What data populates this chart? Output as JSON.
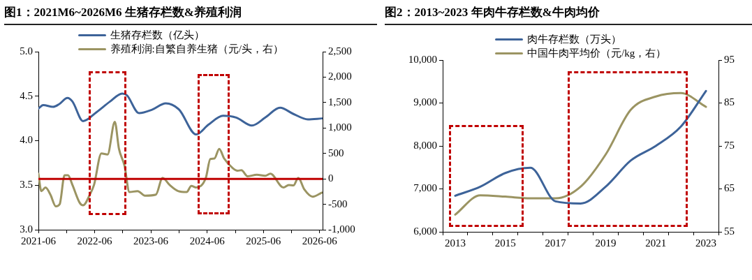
{
  "chart_data": [
    {
      "type": "line",
      "title": "图1：2021M6~2026M6 生猪存栏数&养殖利润",
      "legend": "top",
      "grid": false,
      "xlim": [
        "2021-06",
        "2026-06-20"
      ],
      "xticks": [
        {
          "value": "2021-06",
          "label": "2021-06"
        },
        {
          "value": "2021-12",
          "label": null
        },
        {
          "value": "2022-06",
          "label": "2022-06"
        },
        {
          "value": "2022-12",
          "label": null
        },
        {
          "value": "2023-06",
          "label": "2023-06"
        },
        {
          "value": "2023-12",
          "label": null
        },
        {
          "value": "2024-06",
          "label": "2024-06"
        },
        {
          "value": "2024-12",
          "label": null
        },
        {
          "value": "2025-06",
          "label": "2025-06"
        },
        {
          "value": "2025-12",
          "label": null
        },
        {
          "value": "2026-06",
          "label": "2026-06"
        }
      ],
      "ylim": [
        3,
        5
      ],
      "yticks": [
        {
          "value": 3,
          "label": "3.0"
        },
        {
          "value": 3.5,
          "label": "3.5"
        },
        {
          "value": 4,
          "label": "4.0"
        },
        {
          "value": 4.5,
          "label": "4.5"
        },
        {
          "value": 5,
          "label": "5.0"
        }
      ],
      "y2lim": [
        -1000,
        2500
      ],
      "y2ticks": [
        {
          "value": -1000,
          "label": "-1,000"
        },
        {
          "value": -500,
          "label": "-500"
        },
        0,
        500,
        {
          "value": 1000,
          "label": "1,000"
        },
        {
          "value": 1500,
          "label": "1,500"
        },
        {
          "value": 2000,
          "label": "2,000"
        },
        {
          "value": 2500,
          "label": "2,500"
        }
      ],
      "ref_lines": [
        {
          "axis": "y2",
          "value": 0,
          "color": "#c00000"
        }
      ],
      "series": [
        {
          "name": "生猪存栏数（亿头）",
          "color": "#3d6399",
          "x": [
            "2021-06-01",
            "2021-07-02",
            "2021-09-04",
            "2021-10-13",
            "2021-12-07",
            "2022-01-08",
            "2022-03-18",
            "2022-06-13",
            "2022-09-09",
            "2022-11-27",
            "2022-12-28",
            "2023-03-16",
            "2023-06-11",
            "2023-09-06",
            "2023-12-01",
            "2024-03-21",
            "2024-06-09",
            "2024-09-12",
            "2024-12-06",
            "2025-03-18",
            "2025-06-13",
            "2025-09-17",
            "2025-12-13",
            "2026-03-16",
            "2026-06-15"
          ],
          "values": [
            4.36,
            4.4,
            4.38,
            4.41,
            4.48,
            4.44,
            4.22,
            4.32,
            4.44,
            4.53,
            4.51,
            4.31,
            4.35,
            4.42,
            4.35,
            4.07,
            4.18,
            4.28,
            4.26,
            4.17,
            4.26,
            4.37,
            4.3,
            4.24,
            4.25
          ]
        },
        {
          "name": "养殖利润:自繁自养生猪（元/头，右）",
          "color": "#9b9462",
          "axis": "y2",
          "x": [
            "2021-06-01",
            "2021-06-20",
            "2021-07-17",
            "2021-08-18",
            "2021-09-22",
            "2021-10-17",
            "2021-11-18",
            "2021-12-10",
            "2022-01-08",
            "2022-02-24",
            "2022-03-18",
            "2022-05-01",
            "2022-05-28",
            "2022-07-15",
            "2022-08-24",
            "2022-10-10",
            "2022-11-06",
            "2022-12-12",
            "2023-01-13",
            "2023-03-07",
            "2023-04-24",
            "2023-07-04",
            "2023-08-16",
            "2023-10-01",
            "2023-11-25",
            "2024-01-19",
            "2024-02-19",
            "2024-03-21",
            "2024-05-23",
            "2024-06-21",
            "2024-07-18",
            "2024-08-18",
            "2024-09-19",
            "2024-11-14",
            "2024-12-15",
            "2025-01-09",
            "2025-02-18",
            "2025-04-19",
            "2025-06-13",
            "2025-07-16",
            "2025-10-09",
            "2025-11-12",
            "2025-12-13",
            "2026-01-13",
            "2026-02-22",
            "2026-04-16",
            "2026-06-15"
          ],
          "values": [
            100,
            -240,
            -170,
            -310,
            -540,
            -500,
            70,
            70,
            -120,
            -470,
            -520,
            -310,
            -120,
            500,
            480,
            1120,
            590,
            260,
            -260,
            -240,
            -330,
            -310,
            20,
            -120,
            -240,
            -260,
            -140,
            -170,
            20,
            390,
            400,
            590,
            400,
            210,
            160,
            170,
            50,
            80,
            60,
            100,
            -170,
            -120,
            -130,
            20,
            -210,
            -350,
            -270
          ]
        }
      ]
    },
    {
      "type": "line",
      "title": "图2：2013~2023 年肉牛存栏数&牛肉均价",
      "legend": "top",
      "grid": false,
      "categories": [
        "2013",
        null,
        "2015",
        null,
        "2017",
        null,
        "2019",
        null,
        "2021",
        null,
        "2023"
      ],
      "ylim": [
        6000,
        10000
      ],
      "yticks": [
        {
          "value": 6000,
          "label": "6,000"
        },
        {
          "value": 7000,
          "label": "7,000"
        },
        {
          "value": 8000,
          "label": "8,000"
        },
        {
          "value": 9000,
          "label": "9,000"
        },
        {
          "value": 10000,
          "label": "10,000"
        }
      ],
      "y2lim": [
        55,
        95
      ],
      "y2ticks": [
        55,
        65,
        75,
        85,
        95
      ],
      "series": [
        {
          "name": "肉牛存栏数（万头）",
          "color": "#3d6399",
          "values": [
            6840,
            7050,
            7370,
            7490,
            6710,
            6660,
            7050,
            7660,
            8000,
            8450,
            9280
          ]
        },
        {
          "name": "中国牛肉平均价（元/kg，右）",
          "color": "#9b9462",
          "axis": "y2",
          "values": [
            59.0,
            63.5,
            63.2,
            62.8,
            62.8,
            65.5,
            73.0,
            83.4,
            86.5,
            87.3,
            84.1
          ]
        }
      ]
    }
  ]
}
